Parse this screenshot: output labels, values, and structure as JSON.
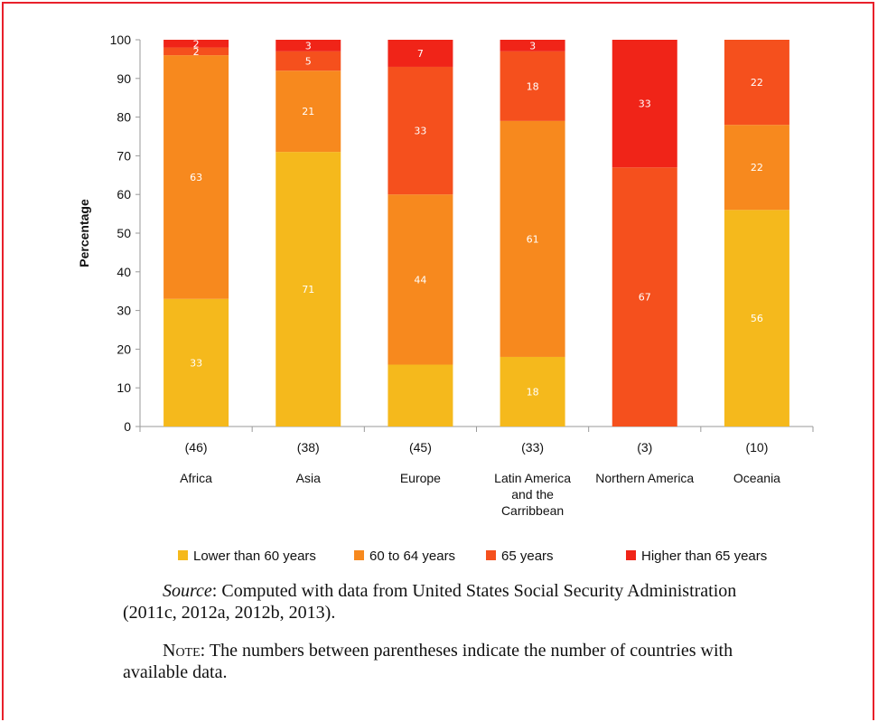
{
  "chart_data": {
    "type": "bar",
    "stacked": true,
    "ylabel": "Percentage",
    "ylim": [
      0,
      100
    ],
    "yticks": [
      0,
      10,
      20,
      30,
      40,
      50,
      60,
      70,
      80,
      90,
      100
    ],
    "categories": [
      {
        "count": "(46)",
        "lines": [
          "Africa"
        ]
      },
      {
        "count": "(38)",
        "lines": [
          "Asia"
        ]
      },
      {
        "count": "(45)",
        "lines": [
          "Europe"
        ]
      },
      {
        "count": "(33)",
        "lines": [
          "Latin America",
          "and the",
          "Carribbean"
        ]
      },
      {
        "count": "(3)",
        "lines": [
          "Northern America"
        ]
      },
      {
        "count": "(10)",
        "lines": [
          "Oceania"
        ]
      }
    ],
    "series": [
      {
        "name": "Lower than 60 years",
        "color": "#f5b91c",
        "values": [
          33,
          71,
          16,
          18,
          0,
          56
        ],
        "labels": [
          "33",
          "71",
          "",
          "18",
          "",
          "56"
        ]
      },
      {
        "name": "60 to 64 years",
        "color": "#f7891e",
        "values": [
          63,
          21,
          44,
          61,
          0,
          22
        ],
        "labels": [
          "63",
          "21",
          "44",
          "61",
          "",
          "22"
        ]
      },
      {
        "name": "65 years",
        "color": "#f5501d",
        "values": [
          2,
          5,
          33,
          18,
          67,
          22
        ],
        "labels": [
          "2",
          "5",
          "33",
          "18",
          "67",
          "22"
        ]
      },
      {
        "name": "Higher than 65 years",
        "color": "#f02418",
        "values": [
          2,
          3,
          7,
          3,
          33,
          0
        ],
        "labels": [
          "2",
          "3",
          "7",
          "3",
          "33",
          ""
        ]
      }
    ],
    "legend_position": "bottom",
    "grid": false
  },
  "source": {
    "label": "Source",
    "text": ": Computed with data from United States Social Security Administration (2011c, 2012a, 2012b, 2013)."
  },
  "note": {
    "label": "Note",
    "text": ": The numbers between parentheses indicate the number of countries with available data."
  }
}
